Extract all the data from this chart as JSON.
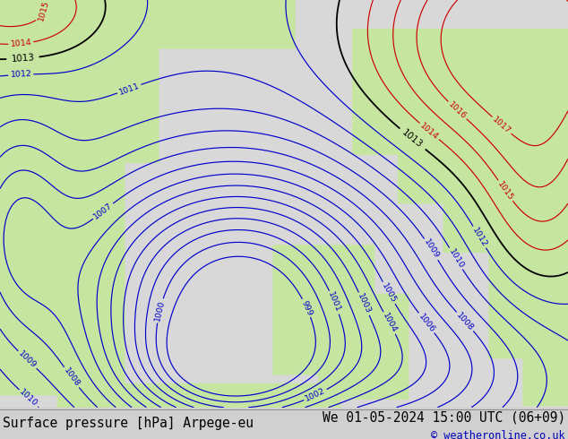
{
  "title_left": "Surface pressure [hPa] Arpege-eu",
  "title_right": "We 01-05-2024 15:00 UTC (06+09)",
  "copyright": "© weatheronline.co.uk",
  "bottom_bar_color": "#d0d0d0",
  "blue_contour_color": "#0000cc",
  "red_contour_color": "#cc0000",
  "black_contour_color": "#000000",
  "land_color": [
    0.78,
    0.9,
    0.63
  ],
  "sea_color": [
    0.85,
    0.85,
    0.85
  ],
  "title_fontsize": 10.5,
  "copyright_fontsize": 8.5,
  "blue_levels": [
    999,
    1000,
    1001,
    1002,
    1003,
    1004,
    1005,
    1006,
    1007,
    1008,
    1009,
    1010,
    1011,
    1012
  ],
  "black_levels": [
    1013
  ],
  "red_levels": [
    1014,
    1015,
    1016,
    1017
  ]
}
